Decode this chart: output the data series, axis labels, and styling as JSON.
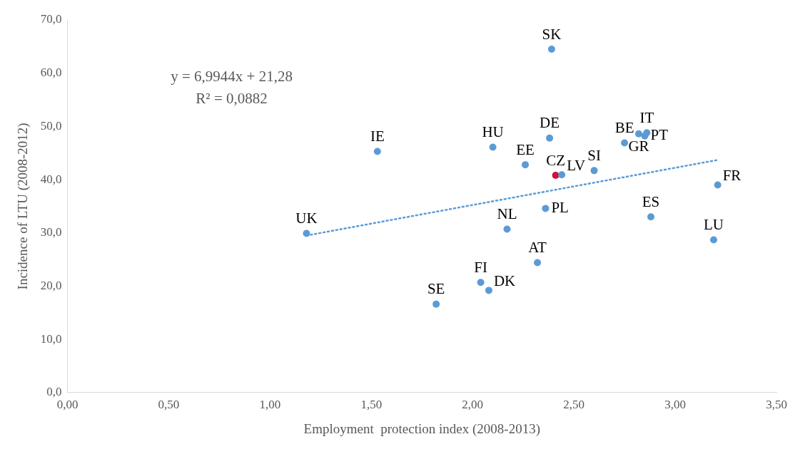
{
  "chart_data": {
    "type": "scatter",
    "xlabel": "Employment  protection index (2008-2013)",
    "ylabel": "Incidence of LTU (2008-2012)",
    "xlim": [
      0,
      3.5
    ],
    "xticks": [
      {
        "value": 0,
        "label": "0,00"
      },
      {
        "value": 0.5,
        "label": "0,50"
      },
      {
        "value": 1,
        "label": "1,00"
      },
      {
        "value": 1.5,
        "label": "1,50"
      },
      {
        "value": 2,
        "label": "2,00"
      },
      {
        "value": 2.5,
        "label": "2,50"
      },
      {
        "value": 3,
        "label": "3,00"
      },
      {
        "value": 3.5,
        "label": "3,50"
      }
    ],
    "ylim": [
      0,
      70
    ],
    "yticks": [
      {
        "value": 0,
        "label": "0,0"
      },
      {
        "value": 10,
        "label": "10,0"
      },
      {
        "value": 20,
        "label": "20,0"
      },
      {
        "value": 30,
        "label": "30,0"
      },
      {
        "value": 40,
        "label": "40,0"
      },
      {
        "value": 50,
        "label": "50,0"
      },
      {
        "value": 60,
        "label": "60,0"
      },
      {
        "value": 70,
        "label": "70,0"
      }
    ],
    "grid": false,
    "legend": false,
    "marker": "circle",
    "series": [
      {
        "x": [
          2.39,
          1.53,
          2.1,
          2.38,
          2.26,
          2.41,
          2.44,
          2.6,
          2.75,
          2.82,
          2.86,
          2.85,
          3.21,
          2.88,
          3.19,
          1.18,
          2.17,
          2.36,
          2.32,
          2.04,
          2.08,
          1.82
        ],
        "values": [
          64.5,
          45.3,
          46.1,
          47.8,
          42.8,
          40.8,
          40.9,
          41.7,
          46.9,
          48.6,
          48.8,
          48.2,
          39.0,
          33.0,
          28.7,
          29.9,
          30.7,
          34.6,
          24.4,
          20.7,
          19.2,
          16.6
        ],
        "colors": [
          "#5b9bd5",
          "#5b9bd5",
          "#5b9bd5",
          "#5b9bd5",
          "#5b9bd5",
          "#d0103a",
          "#5b9bd5",
          "#5b9bd5",
          "#5b9bd5",
          "#5b9bd5",
          "#5b9bd5",
          "#5b9bd5",
          "#5b9bd5",
          "#5b9bd5",
          "#5b9bd5",
          "#5b9bd5",
          "#5b9bd5",
          "#5b9bd5",
          "#5b9bd5",
          "#5b9bd5",
          "#5b9bd5",
          "#5b9bd5"
        ]
      },
      {
        "type": "line",
        "color": "#5b9bd5",
        "line_style": "dotted",
        "marker": "none",
        "x": [
          1.18,
          3.21
        ],
        "values": [
          29.5,
          43.7
        ]
      }
    ],
    "annotations": [
      "y = 6,9944x + 21,28\nR² = 0,0882",
      {
        "text": "SK",
        "x": 2.39,
        "y": 64.5
      },
      {
        "text": "IE",
        "x": 1.53,
        "y": 45.3
      },
      {
        "text": "HU",
        "x": 2.1,
        "y": 46.1
      },
      {
        "text": "DE",
        "x": 2.38,
        "y": 47.8
      },
      {
        "text": "EE",
        "x": 2.26,
        "y": 42.8
      },
      {
        "text": "CZ",
        "x": 2.41,
        "y": 40.8
      },
      {
        "text": "LV",
        "x": 2.44,
        "y": 40.9
      },
      {
        "text": "SI",
        "x": 2.6,
        "y": 41.7
      },
      {
        "text": "BE",
        "x": 2.75,
        "y": 46.9
      },
      {
        "text": "GR",
        "x": 2.82,
        "y": 48.6
      },
      {
        "text": "IT",
        "x": 2.86,
        "y": 48.8
      },
      {
        "text": "PT",
        "x": 2.85,
        "y": 48.2
      },
      {
        "text": "FR",
        "x": 3.21,
        "y": 39.0
      },
      {
        "text": "ES",
        "x": 2.88,
        "y": 33.0
      },
      {
        "text": "LU",
        "x": 3.19,
        "y": 28.7
      },
      {
        "text": "UK",
        "x": 1.18,
        "y": 29.9
      },
      {
        "text": "NL",
        "x": 2.17,
        "y": 30.7
      },
      {
        "text": "PL",
        "x": 2.36,
        "y": 34.6
      },
      {
        "text": "AT",
        "x": 2.32,
        "y": 24.4
      },
      {
        "text": "FI",
        "x": 2.04,
        "y": 20.7
      },
      {
        "text": "DK",
        "x": 2.08,
        "y": 19.2
      },
      {
        "text": "SE",
        "x": 1.82,
        "y": 16.6
      }
    ]
  }
}
